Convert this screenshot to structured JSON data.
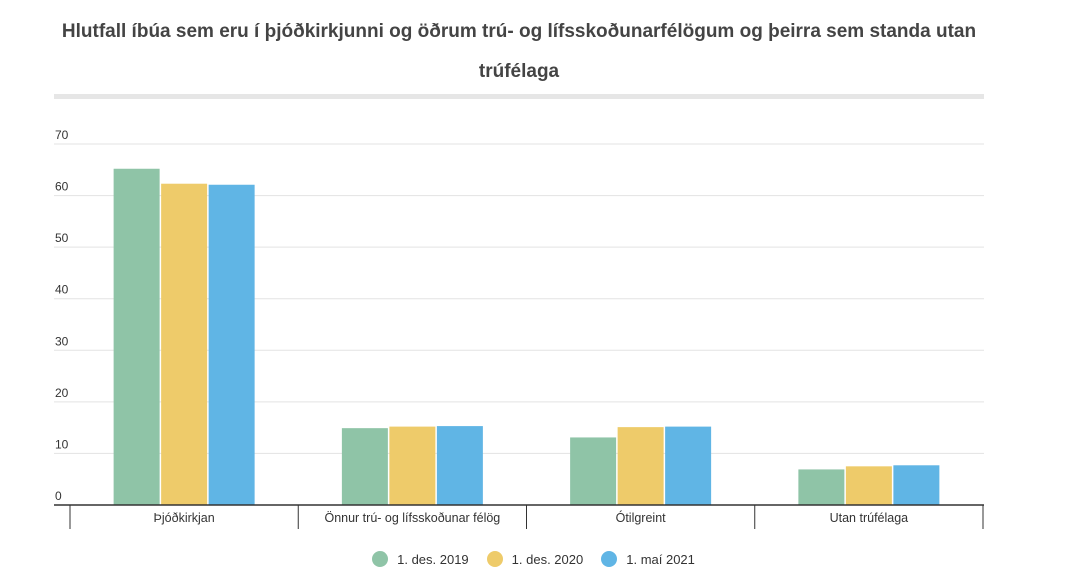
{
  "chart_data": {
    "type": "bar",
    "title": "Hlutfall íbúa sem eru í þjóðkirkjunni og öðrum trú- og lífsskoðunarfélögum og þeirra sem standa utan trúfélaga",
    "xlabel": "",
    "ylabel": "",
    "categories": [
      "Þjóðkirkjan",
      "Önnur trú- og lífsskoðunar félög",
      "Ótilgreint",
      "Utan trúfélaga"
    ],
    "series": [
      {
        "name": "1. des. 2019",
        "color": "#8fc4a7",
        "values": [
          65.2,
          14.9,
          13.1,
          6.9
        ]
      },
      {
        "name": "1. des. 2020",
        "color": "#eecb6a",
        "values": [
          62.3,
          15.2,
          15.1,
          7.5
        ]
      },
      {
        "name": "1. maí 2021",
        "color": "#60b5e5",
        "values": [
          62.1,
          15.3,
          15.2,
          7.7
        ]
      }
    ],
    "y_ticks": [
      0,
      10,
      20,
      30,
      40,
      50,
      60,
      70
    ],
    "ylim": [
      0,
      70
    ],
    "grid": true,
    "legend_position": "bottom-center"
  }
}
